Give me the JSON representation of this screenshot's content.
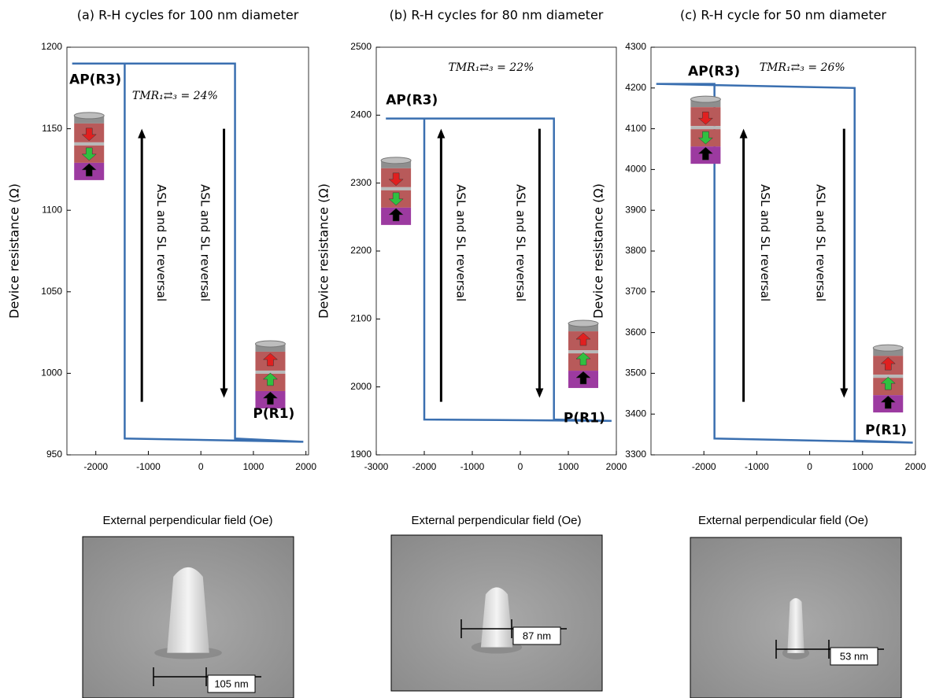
{
  "chart_data": [
    {
      "type": "line",
      "title": "(a) R-H cycles for 100 nm diameter",
      "xlabel": "External perpendicular field (Oe)",
      "ylabel": "Device resistance (Ω)",
      "xlim": [
        -2550,
        2050
      ],
      "ylim": [
        950,
        1200
      ],
      "xticks": [
        -2000,
        -1000,
        0,
        1000,
        2000
      ],
      "yticks": [
        950,
        1000,
        1050,
        1100,
        1150,
        1200
      ],
      "series": [
        {
          "name": "R-H loop",
          "color": "#3a6fb0",
          "x": [
            -2450,
            650,
            650,
            1950,
            -1450,
            -1450,
            -2450
          ],
          "values": [
            1190,
            1190,
            960,
            958,
            960,
            1190,
            1190
          ]
        }
      ],
      "annotations": {
        "ap": "AP(R3)",
        "p": "P(R1)",
        "tmr": "TMR₁⇄₃ = 24%",
        "up": "ASL and SL reversal",
        "down": "ASL and SL reversal"
      },
      "scale_bar_label": "105 nm"
    },
    {
      "type": "line",
      "title": "(b) R-H cycles for 80 nm diameter",
      "xlabel": "External perpendicular field (Oe)",
      "ylabel": "Device resistance (Ω)",
      "xlim": [
        -3000,
        2000
      ],
      "ylim": [
        1900,
        2500
      ],
      "xticks": [
        -3000,
        -2000,
        -1000,
        0,
        1000,
        2000
      ],
      "yticks": [
        1900,
        2000,
        2100,
        2200,
        2300,
        2400,
        2500
      ],
      "series": [
        {
          "name": "R-H loop",
          "color": "#3a6fb0",
          "x": [
            -2800,
            700,
            700,
            1900,
            -2000,
            -2000,
            -2800
          ],
          "values": [
            2395,
            2395,
            1952,
            1950,
            1952,
            2395,
            2395
          ]
        }
      ],
      "annotations": {
        "ap": "AP(R3)",
        "p": "P(R1)",
        "tmr": "TMR₁⇄₃ = 22%",
        "up": "ASL and SL reversal",
        "down": "ASL and SL reversal"
      },
      "scale_bar_label": "87 nm"
    },
    {
      "type": "line",
      "title": "(c) R-H cycle for 50 nm diameter",
      "xlabel": "External perpendicular field (Oe)",
      "ylabel": "Device resistance (Ω)",
      "xlim": [
        -3000,
        2000
      ],
      "ylim": [
        3300,
        4300
      ],
      "xticks": [
        -2000,
        -1000,
        0,
        1000,
        2000
      ],
      "yticks": [
        3300,
        3400,
        3500,
        3600,
        3700,
        3800,
        3900,
        4000,
        4100,
        4200,
        4300
      ],
      "series": [
        {
          "name": "R-H loop",
          "color": "#3a6fb0",
          "x": [
            -2900,
            850,
            850,
            1950,
            -1800,
            -1800,
            -2900
          ],
          "values": [
            4210,
            4200,
            3335,
            3330,
            3340,
            4210,
            4210
          ]
        }
      ],
      "annotations": {
        "ap": "AP(R3)",
        "p": "P(R1)",
        "tmr": "TMR₁⇄₃ = 26%",
        "up": "ASL and SL reversal",
        "down": "ASL and SL reversal"
      },
      "scale_bar_label": "53 nm"
    }
  ]
}
